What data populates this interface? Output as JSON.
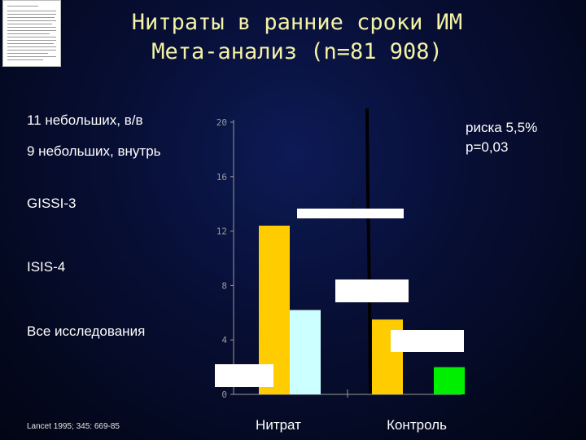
{
  "slide": {
    "title_line1": "Нитраты в ранние сроки ИМ",
    "title_line2": "Мета-анализ (n=81 908)",
    "studies": [
      "11 небольших, в/в",
      "9 небольших, внутрь",
      "GISSI-3",
      "ISIS-4",
      "Все исследования"
    ],
    "risk_text": "риска 5,5%",
    "p_text": "p=0,03",
    "citation": "Lancet 1995; 345: 669-85",
    "colors": {
      "background": "#070e33",
      "title": "#f3f2a6",
      "bar_yellow": "#ffcc00",
      "bar_lightblue": "#ccffff",
      "bar_green": "#00ee00"
    }
  },
  "chart_data": {
    "type": "bar",
    "categories": [
      "Нитрат",
      "Контроль"
    ],
    "series": [
      {
        "values": [
          12.4,
          5.5
        ]
      },
      {
        "values": [
          6.2,
          0
        ]
      },
      {
        "values": [
          0,
          2.0
        ]
      }
    ],
    "ylim": [
      0,
      20
    ],
    "yticks": [
      "0",
      "4",
      "8",
      "12",
      "16",
      "20"
    ],
    "grid": false
  }
}
